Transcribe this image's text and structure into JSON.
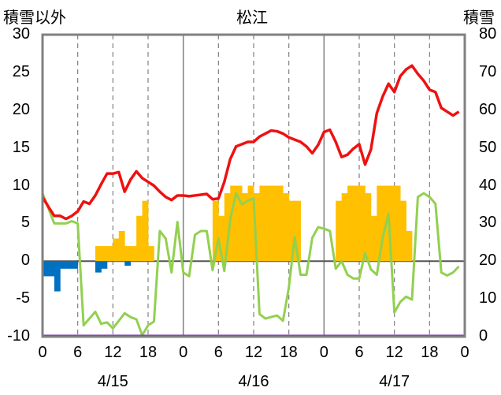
{
  "chart_data": {
    "type": "bar+line",
    "title": "松江",
    "left_axis_label": "積雪以外",
    "right_axis_label": "積雪",
    "left_ylim": [
      -10,
      30
    ],
    "left_ticks": [
      "30",
      "25",
      "20",
      "15",
      "10",
      "5",
      "0",
      "-5",
      "-10"
    ],
    "right_ylim": [
      0,
      80
    ],
    "right_ticks": [
      "80",
      "70",
      "60",
      "50",
      "40",
      "30",
      "20",
      "10",
      "0"
    ],
    "x_hours_total": 72,
    "x_tick_labels": [
      "0",
      "6",
      "12",
      "18",
      "0",
      "6",
      "12",
      "18",
      "0",
      "6",
      "12",
      "18",
      "0"
    ],
    "date_labels": [
      "4/15",
      "4/16",
      "4/17"
    ],
    "grid": "dashed at 6-hour marks, solid at day boundaries",
    "colors": {
      "temperature": "#ee1111",
      "secondary_line": "#92d050",
      "positive_bars": "#ffc000",
      "negative_bars": "#0070c0",
      "baseline_line": "#7030a0",
      "frame": "#808080",
      "zero_line": "#555555"
    },
    "temperature_series": {
      "x": [
        0,
        1,
        2,
        3,
        4,
        5,
        6,
        7,
        8,
        9,
        10,
        11,
        12,
        13,
        14,
        15,
        16,
        17,
        18,
        19,
        20,
        21,
        22,
        23,
        24,
        25,
        26,
        27,
        28,
        29,
        30,
        31,
        32,
        33,
        34,
        35,
        36,
        37,
        38,
        39,
        40,
        41,
        42,
        43,
        44,
        45,
        46,
        47,
        48,
        49,
        50,
        51,
        52,
        53,
        54,
        55,
        56,
        57,
        58,
        59,
        60,
        61,
        62,
        63,
        64,
        65,
        66,
        67,
        68,
        69,
        70,
        71
      ],
      "values": [
        8.5,
        7.2,
        6,
        6,
        5.6,
        6,
        6.6,
        7.9,
        7.6,
        8.7,
        10.2,
        11.6,
        11.6,
        11.8,
        9.2,
        10.8,
        11.9,
        11,
        10.5,
        10,
        9.2,
        8.5,
        8.1,
        8.7,
        8.7,
        8.6,
        8.7,
        8.8,
        8.9,
        8.2,
        8.3,
        10.5,
        13.5,
        15.2,
        15.5,
        15.8,
        15.8,
        16.5,
        16.9,
        17.3,
        17.2,
        16.9,
        16.4,
        16.1,
        15.8,
        15.2,
        14.3,
        15.4,
        17.1,
        17.4,
        15.8,
        13.8,
        14.1,
        14.9,
        15.5,
        12.8,
        14.8,
        19.6,
        21.8,
        23.5,
        22.4,
        24.5,
        25.4,
        25.9,
        24.8,
        23.9,
        22.7,
        22.4,
        20.3,
        19.8,
        19.3,
        19.8
      ]
    },
    "secondary_line_series": {
      "x": [
        0,
        1,
        2,
        3,
        4,
        5,
        6,
        7,
        8,
        9,
        10,
        11,
        12,
        13,
        14,
        15,
        16,
        17,
        18,
        19,
        20,
        21,
        22,
        23,
        24,
        25,
        26,
        27,
        28,
        29,
        30,
        31,
        32,
        33,
        34,
        35,
        36,
        37,
        38,
        39,
        40,
        41,
        42,
        43,
        44,
        45,
        46,
        47,
        48,
        49,
        50,
        51,
        52,
        53,
        54,
        55,
        56,
        57,
        58,
        59,
        60,
        61,
        62,
        63,
        64,
        65,
        66,
        67,
        68,
        69,
        70,
        71
      ],
      "values": [
        9,
        7,
        5,
        5,
        5,
        5.3,
        5,
        -8.5,
        -7.6,
        -6.7,
        -8.3,
        -8.1,
        -8.9,
        -7.9,
        -6.9,
        -7.4,
        -7.7,
        -9.8,
        -8.5,
        -8,
        4,
        3,
        -1.5,
        5.2,
        -1.5,
        -2,
        3.5,
        4,
        4,
        -1.2,
        3,
        -1.3,
        5.5,
        9,
        7.5,
        8,
        8.3,
        -7,
        -7.6,
        -7.4,
        -7.2,
        -7.9,
        -3.5,
        3.2,
        -1.8,
        -1.8,
        3.1,
        4.5,
        4.3,
        4,
        -1,
        0,
        -1.8,
        -2.3,
        -2.3,
        1.1,
        -1.1,
        -1.8,
        3.1,
        6.3,
        -6.8,
        -5.4,
        -4.7,
        -5.1,
        8.5,
        9,
        8.5,
        7.6,
        -1.5,
        -1.9,
        -1.5,
        -0.7
      ]
    },
    "positive_bars": {
      "x": [
        9,
        10,
        11,
        12,
        13,
        14,
        15,
        16,
        17,
        18,
        29,
        30,
        31,
        32,
        33,
        34,
        35,
        36,
        37,
        38,
        39,
        40,
        41,
        42,
        43,
        50,
        51,
        52,
        53,
        54,
        55,
        56,
        57,
        58,
        59,
        60,
        61,
        62
      ],
      "values": [
        2,
        2,
        2,
        3,
        4,
        2,
        2,
        6,
        8,
        2,
        8,
        6,
        9,
        10,
        10,
        9,
        10,
        9,
        10,
        10,
        10,
        10,
        9,
        8,
        8,
        8,
        9,
        10,
        10,
        10,
        9,
        6,
        10,
        10,
        10,
        10,
        8,
        4
      ]
    },
    "negative_bars": {
      "x": [
        0,
        1,
        2,
        3,
        4,
        5,
        6,
        7,
        8,
        9,
        10,
        11,
        12,
        13,
        14
      ],
      "values": [
        -2,
        -2,
        -4,
        -1,
        -1,
        -1,
        0,
        0,
        0,
        -1.5,
        -1,
        0,
        0,
        0,
        -0.6
      ]
    },
    "baseline_value": -10
  }
}
